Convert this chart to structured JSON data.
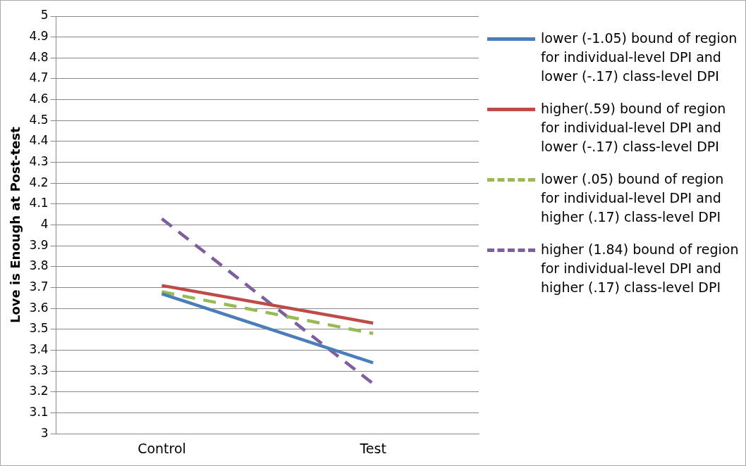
{
  "chart_data": {
    "type": "line",
    "ylabel": "Love is Enough at Post-test",
    "categories": [
      "Control",
      "Test"
    ],
    "series": [
      {
        "name": "lower (-1.05) bound of region for individual-level DPI and lower (-.17) class-level DPI",
        "color": "#4a7ebb",
        "values": [
          3.67,
          3.34
        ],
        "line_style": "solid"
      },
      {
        "name": "higher(.59) bound of region for individual-level DPI and lower (-.17) class-level DPI",
        "color": "#be4b48",
        "values": [
          3.71,
          3.53
        ],
        "line_style": "solid"
      },
      {
        "name": "lower (.05) bound of region for  individual-level DPI and higher (.17) class-level DPI",
        "color": "#98b954",
        "values": [
          3.68,
          3.48
        ],
        "line_style": "dashed"
      },
      {
        "name": "higher (1.84) bound of region for individual-level DPI and higher (.17) class-level DPI",
        "color": "#7d5fa0",
        "values": [
          4.03,
          3.24
        ],
        "line_style": "dashed"
      }
    ],
    "ylim": [
      3,
      5
    ],
    "yticks": [
      3,
      3.1,
      3.2,
      3.3,
      3.4,
      3.5,
      3.6,
      3.7,
      3.8,
      3.9,
      4,
      4.1,
      4.2,
      4.3,
      4.4,
      4.5,
      4.6,
      4.7,
      4.8,
      4.9,
      5
    ],
    "grid": "y",
    "legend": "right",
    "marker": "none"
  }
}
